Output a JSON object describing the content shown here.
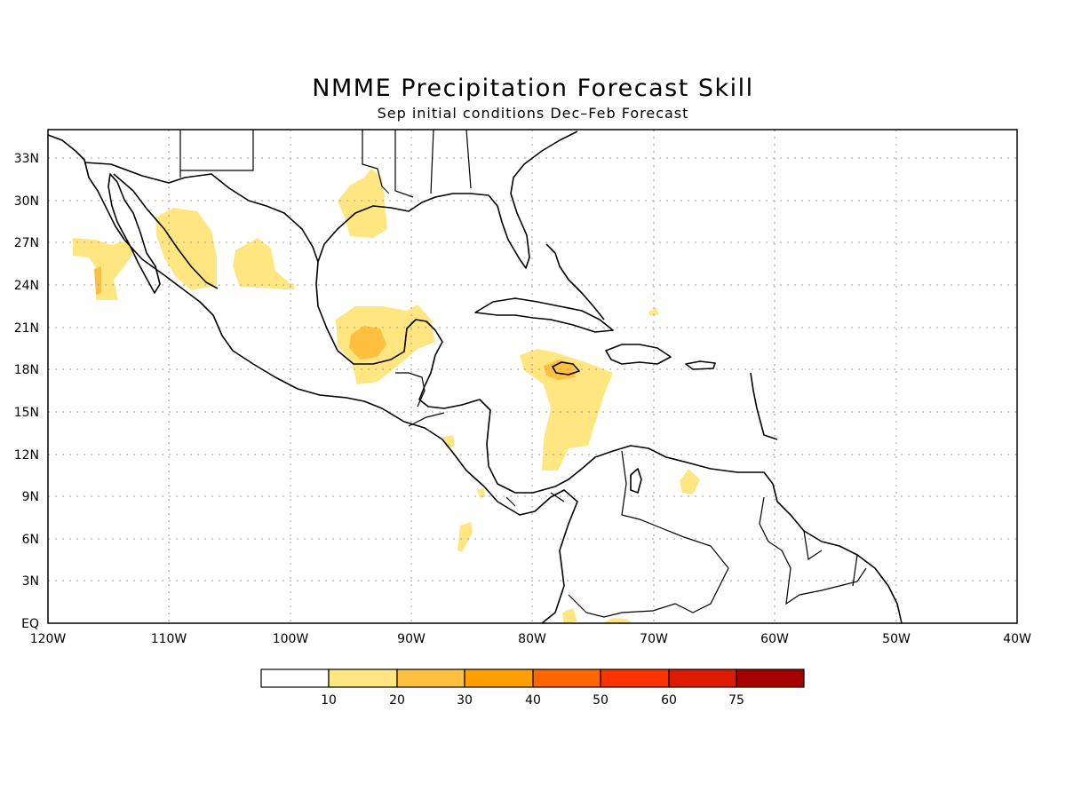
{
  "title": "NMME Precipitation Forecast Skill",
  "subtitle": "Sep initial conditions   Dec–Feb Forecast",
  "map": {
    "lon_range": [
      -120,
      -40
    ],
    "lat_range": [
      0,
      35
    ],
    "lat_labels": [
      "EQ",
      "3N",
      "6N",
      "9N",
      "12N",
      "15N",
      "18N",
      "21N",
      "24N",
      "27N",
      "30N",
      "33N"
    ],
    "lon_labels": [
      "120W",
      "110W",
      "100W",
      "90W",
      "80W",
      "70W",
      "60W",
      "50W",
      "40W"
    ]
  },
  "legend": {
    "labels": [
      "10",
      "20",
      "30",
      "40",
      "50",
      "60",
      "75"
    ],
    "colors": [
      "#ffffff",
      "#ffe680",
      "#ffbf3f",
      "#ff9f00",
      "#ff6600",
      "#ff3300",
      "#de1a00",
      "#a60000"
    ]
  }
}
